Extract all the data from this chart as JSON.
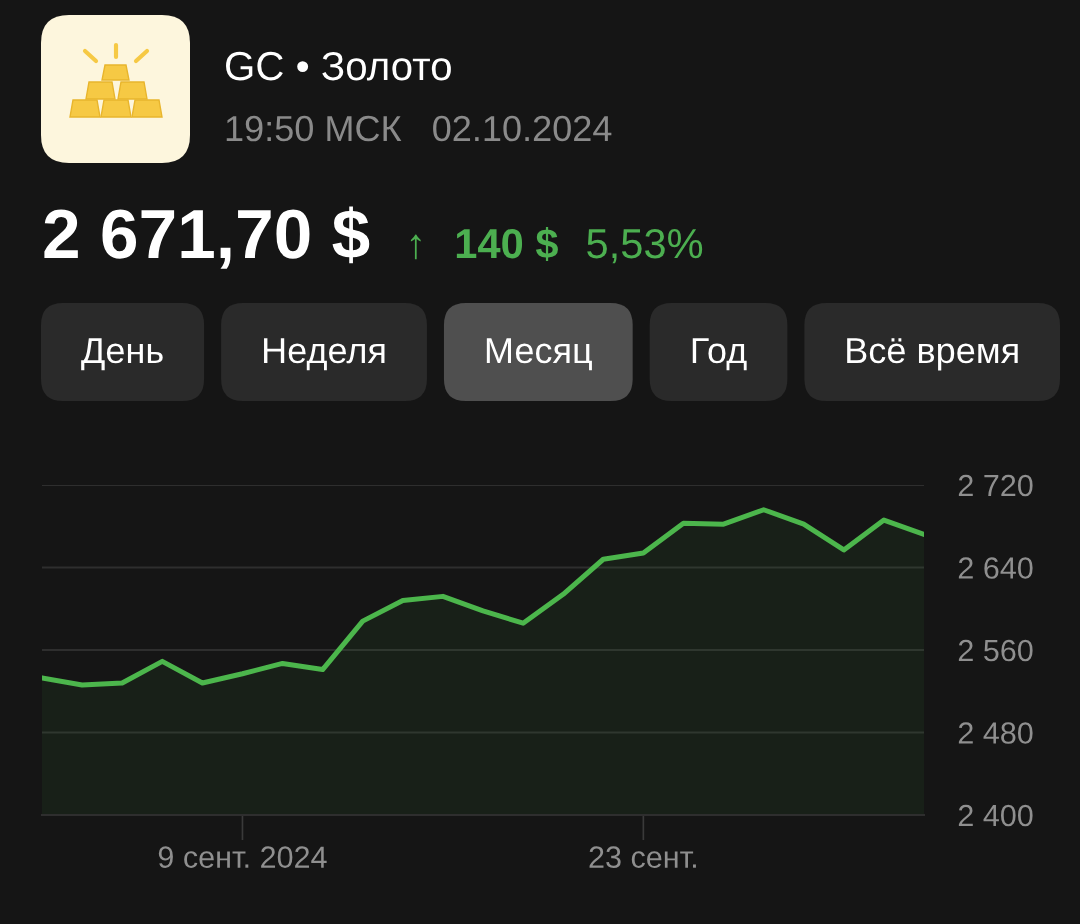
{
  "chart_data": {
    "type": "area",
    "title": "GC • Золото",
    "subtitle": "19:50 МСК   02.10.2024",
    "annotations": [
      "2 671,70 $",
      "↑",
      "140 $",
      "5,53%",
      "День",
      "Неделя",
      "Месяц",
      "Год",
      "Всё время"
    ],
    "categories": [
      null,
      null,
      null,
      null,
      null,
      "9 сент. 2024",
      null,
      null,
      null,
      null,
      null,
      null,
      null,
      null,
      null,
      "23 сент.",
      null,
      null,
      null,
      null,
      null,
      null,
      null
    ],
    "series": [
      {
        "color": "#4cb64c",
        "values": [
          2533,
          2526,
          2528,
          2549,
          2528,
          2537,
          2547,
          2541,
          2588,
          2608,
          2612,
          2598,
          2586,
          2614,
          2648,
          2654,
          2683,
          2682,
          2696,
          2682,
          2657,
          2686,
          2672
        ]
      }
    ],
    "ylim": [
      2400,
      2720
    ],
    "yticks": [
      {
        "value": 2400,
        "label": "2 400"
      },
      {
        "value": 2480,
        "label": "2 480"
      },
      {
        "value": 2560,
        "label": "2 560"
      },
      {
        "value": 2640,
        "label": "2 640"
      },
      {
        "value": 2720,
        "label": "2 720"
      }
    ],
    "grid": "y"
  }
}
